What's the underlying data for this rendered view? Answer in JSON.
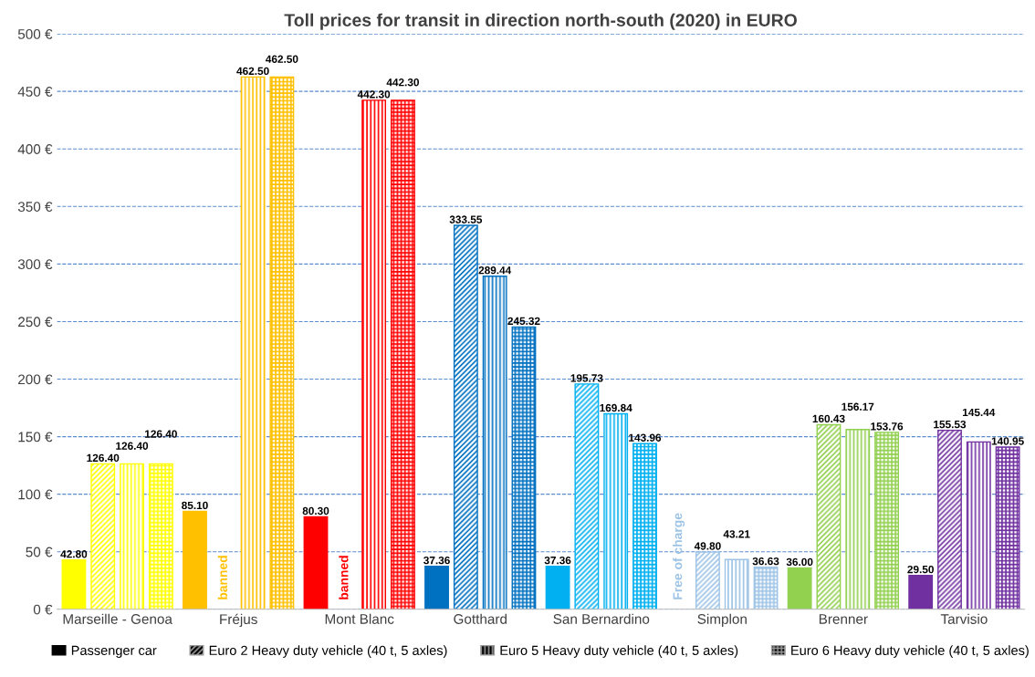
{
  "chart_data": {
    "type": "bar",
    "title": "Toll prices for transit in direction north-south (2020) in EURO",
    "categories": [
      "Marseille - Genoa",
      "Fréjus",
      "Mont Blanc",
      "Gotthard",
      "San Bernardino",
      "Simplon",
      "Brenner",
      "Tarvisio"
    ],
    "series": [
      {
        "name": "Passenger car",
        "color": "#000000",
        "colors": [
          "#ffff00",
          "#ffc000",
          "#ff0000",
          "#0070c0",
          "#00b0f0",
          "#9dc3e6",
          "#92d050",
          "#7030a0"
        ],
        "values": [
          42.8,
          85.1,
          80.3,
          37.36,
          37.36,
          null,
          36.0,
          29.5
        ],
        "value_labels": [
          "42.80",
          "85.10",
          "80.30",
          "37.36",
          "37.36",
          "Free of charge",
          "36.00",
          "29.50"
        ]
      },
      {
        "name": "Euro 2 Heavy duty vehicle (40 t, 5 axles)",
        "color": "#000000",
        "colors": [
          "#ffff00",
          "#ffc000",
          "#ff0000",
          "#0070c0",
          "#00b0f0",
          "#9dc3e6",
          "#92d050",
          "#7030a0"
        ],
        "values": [
          126.4,
          null,
          null,
          333.55,
          195.73,
          49.8,
          160.43,
          155.53
        ],
        "value_labels": [
          "126.40",
          "banned",
          "banned",
          "333.55",
          "195.73",
          "49.80",
          "160.43",
          "155.53"
        ]
      },
      {
        "name": "Euro 5 Heavy duty vehicle (40 t, 5 axles)",
        "color": "#000000",
        "colors": [
          "#ffff00",
          "#ffc000",
          "#ff0000",
          "#0070c0",
          "#00b0f0",
          "#9dc3e6",
          "#92d050",
          "#7030a0"
        ],
        "values": [
          126.4,
          462.5,
          442.3,
          289.44,
          169.84,
          43.21,
          156.17,
          145.44
        ],
        "value_labels": [
          "126.40",
          "462.50",
          "442.30",
          "289.44",
          "169.84",
          "43.21",
          "156.17",
          "145.44"
        ]
      },
      {
        "name": "Euro 6 Heavy duty vehicle (40 t, 5 axles)",
        "color": "#000000",
        "colors": [
          "#ffff00",
          "#ffc000",
          "#ff0000",
          "#0070c0",
          "#00b0f0",
          "#9dc3e6",
          "#92d050",
          "#7030a0"
        ],
        "values": [
          126.4,
          462.5,
          442.3,
          245.32,
          143.96,
          36.63,
          153.76,
          140.95
        ],
        "value_labels": [
          "126.40",
          "462.50",
          "442.30",
          "245.32",
          "143.96",
          "36.63",
          "153.76",
          "140.95"
        ]
      }
    ],
    "ylim": [
      0,
      500
    ],
    "yticks": [
      {
        "value": 0,
        "label": "0 €"
      },
      {
        "value": 50,
        "label": "50 €"
      },
      {
        "value": 100,
        "label": "100 €"
      },
      {
        "value": 150,
        "label": "150 €"
      },
      {
        "value": 200,
        "label": "200 €"
      },
      {
        "value": 250,
        "label": "250 €"
      },
      {
        "value": 300,
        "label": "300 €"
      },
      {
        "value": 350,
        "label": "350 €"
      },
      {
        "value": 400,
        "label": "400 €"
      },
      {
        "value": 450,
        "label": "450 €"
      },
      {
        "value": 500,
        "label": "500 €"
      }
    ],
    "grid": "y",
    "legend": "bottom"
  }
}
